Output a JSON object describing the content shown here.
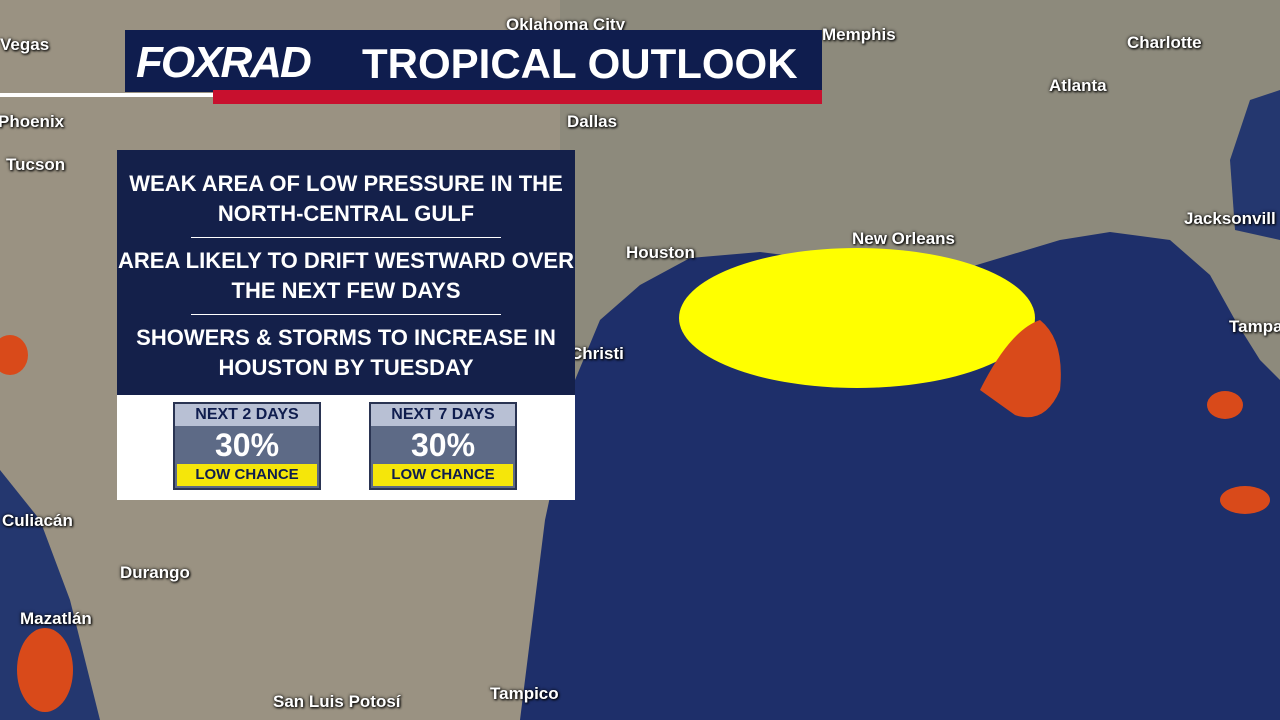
{
  "header": {
    "logo": "FOXRAD",
    "title": "TROPICAL OUTLOOK"
  },
  "panel": {
    "points": [
      "WEAK AREA OF LOW PRESSURE IN THE NORTH-CENTRAL GULF",
      "AREA LIKELY TO DRIFT WESTWARD OVER THE NEXT FEW DAYS",
      "SHOWERS & STORMS TO INCREASE IN HOUSTON BY TUESDAY"
    ],
    "chances": [
      {
        "period": "NEXT 2 DAYS",
        "percent": "30%",
        "level": "LOW CHANCE"
      },
      {
        "period": "NEXT 7 DAYS",
        "percent": "30%",
        "level": "LOW CHANCE"
      }
    ]
  },
  "cities": [
    "Vegas",
    "Phoenix",
    "Tucson",
    "Oklahoma City",
    "Dallas",
    "Memphis",
    "Charlotte",
    "Atlanta",
    "Houston",
    "New Orleans",
    "Jacksonvill",
    "Tampa",
    "Christi",
    "Culiacán",
    "Durango",
    "Mazatlán",
    "San Luis Potosí",
    "Tampico"
  ]
}
